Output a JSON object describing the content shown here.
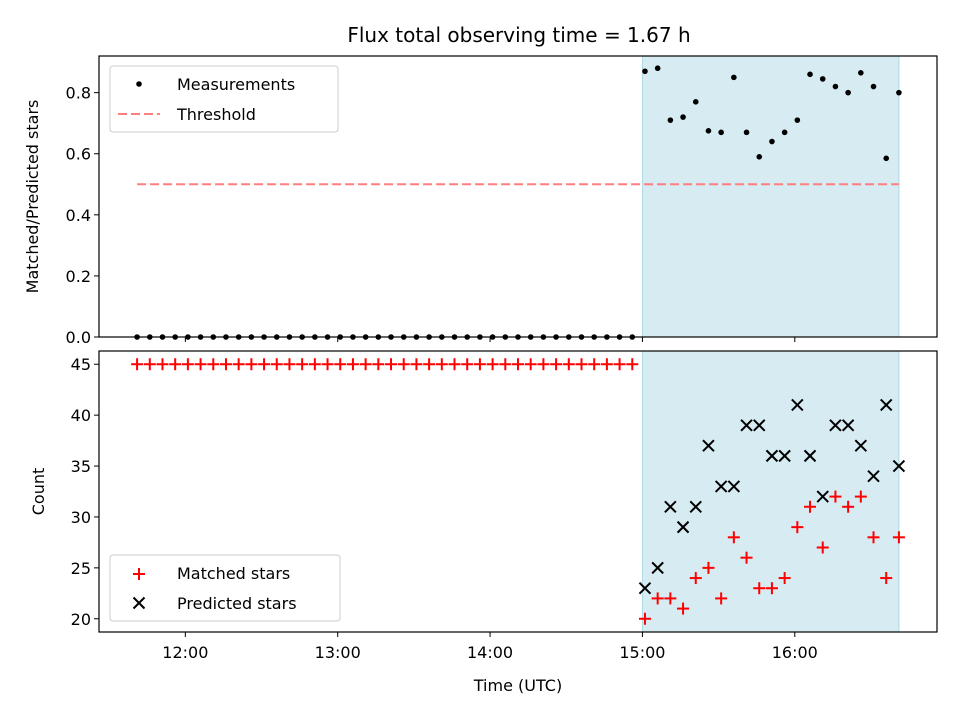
{
  "chart_data": [
    {
      "type": "scatter",
      "title": "Flux total observing time = 1.67 h",
      "xlabel": "",
      "ylabel": "Matched/Predicted stars",
      "xlim": [
        "11:26",
        "16:56"
      ],
      "ylim": [
        0,
        0.92
      ],
      "yticks": [
        0.0,
        0.2,
        0.4,
        0.6,
        0.8
      ],
      "yticklabels": [
        "0.0",
        "0.2",
        "0.4",
        "0.6",
        "0.8"
      ],
      "xticks": [
        "12:00",
        "13:00",
        "14:00",
        "15:00",
        "16:00"
      ],
      "xticklabels": [],
      "grid": false,
      "legend": "upper left",
      "shaded_span": {
        "from": "15:00",
        "to": "16:41",
        "color": "#add8e6"
      },
      "series": [
        {
          "name": "Measurements",
          "kind": "scatter",
          "color": "#000000",
          "x": [
            "11:41",
            "11:46",
            "11:51",
            "11:56",
            "12:01",
            "12:06",
            "12:11",
            "12:16",
            "12:21",
            "12:26",
            "12:31",
            "12:36",
            "12:41",
            "12:46",
            "12:51",
            "12:56",
            "13:01",
            "13:06",
            "13:11",
            "13:16",
            "13:21",
            "13:26",
            "13:31",
            "13:36",
            "13:41",
            "13:46",
            "13:51",
            "13:56",
            "14:01",
            "14:06",
            "14:11",
            "14:16",
            "14:21",
            "14:26",
            "14:31",
            "14:36",
            "14:41",
            "14:46",
            "14:51",
            "14:56",
            "15:01",
            "15:06",
            "15:11",
            "15:16",
            "15:21",
            "15:26",
            "15:31",
            "15:36",
            "15:41",
            "15:46",
            "15:51",
            "15:56",
            "16:01",
            "16:06",
            "16:11",
            "16:16",
            "16:21",
            "16:26",
            "16:31",
            "16:36",
            "16:41"
          ],
          "y": [
            0,
            0,
            0,
            0,
            0,
            0,
            0,
            0,
            0,
            0,
            0,
            0,
            0,
            0,
            0,
            0,
            0,
            0,
            0,
            0,
            0,
            0,
            0,
            0,
            0,
            0,
            0,
            0,
            0,
            0,
            0,
            0,
            0,
            0,
            0,
            0,
            0,
            0,
            0,
            0,
            0.87,
            0.88,
            0.71,
            0.72,
            0.77,
            0.675,
            0.67,
            0.85,
            0.67,
            0.59,
            0.64,
            0.67,
            0.71,
            0.86,
            0.845,
            0.82,
            0.8,
            0.865,
            0.82,
            0.585,
            0.8
          ]
        },
        {
          "name": "Threshold",
          "kind": "line",
          "style": "dashed",
          "color": "#ff7f7f",
          "x": [
            "11:41",
            "16:41"
          ],
          "y": [
            0.5,
            0.5
          ]
        }
      ]
    },
    {
      "type": "scatter",
      "title": "",
      "xlabel": "Time (UTC)",
      "ylabel": "Count",
      "xlim": [
        "11:26",
        "16:56"
      ],
      "ylim": [
        18.7,
        46.3
      ],
      "yticks": [
        20,
        25,
        30,
        35,
        40,
        45
      ],
      "yticklabels": [
        "20",
        "25",
        "30",
        "35",
        "40",
        "45"
      ],
      "xticks": [
        "12:00",
        "13:00",
        "14:00",
        "15:00",
        "16:00"
      ],
      "xticklabels": [
        "12:00",
        "13:00",
        "14:00",
        "15:00",
        "16:00"
      ],
      "grid": false,
      "legend": "lower left",
      "shaded_span": {
        "from": "15:00",
        "to": "16:41",
        "color": "#add8e6"
      },
      "series": [
        {
          "name": "Matched stars",
          "kind": "scatter",
          "marker": "+",
          "color": "#ff0000",
          "x": [
            "11:41",
            "11:46",
            "11:51",
            "11:56",
            "12:01",
            "12:06",
            "12:11",
            "12:16",
            "12:21",
            "12:26",
            "12:31",
            "12:36",
            "12:41",
            "12:46",
            "12:51",
            "12:56",
            "13:01",
            "13:06",
            "13:11",
            "13:16",
            "13:21",
            "13:26",
            "13:31",
            "13:36",
            "13:41",
            "13:46",
            "13:51",
            "13:56",
            "14:01",
            "14:06",
            "14:11",
            "14:16",
            "14:21",
            "14:26",
            "14:31",
            "14:36",
            "14:41",
            "14:46",
            "14:51",
            "14:56",
            "15:01",
            "15:06",
            "15:11",
            "15:16",
            "15:21",
            "15:26",
            "15:31",
            "15:36",
            "15:41",
            "15:46",
            "15:51",
            "15:56",
            "16:01",
            "16:06",
            "16:11",
            "16:16",
            "16:21",
            "16:26",
            "16:31",
            "16:36",
            "16:41"
          ],
          "y": [
            45,
            45,
            45,
            45,
            45,
            45,
            45,
            45,
            45,
            45,
            45,
            45,
            45,
            45,
            45,
            45,
            45,
            45,
            45,
            45,
            45,
            45,
            45,
            45,
            45,
            45,
            45,
            45,
            45,
            45,
            45,
            45,
            45,
            45,
            45,
            45,
            45,
            45,
            45,
            45,
            20,
            22,
            22,
            21,
            24,
            25,
            22,
            28,
            26,
            23,
            23,
            24,
            29,
            31,
            27,
            32,
            31,
            32,
            28,
            24,
            28
          ]
        },
        {
          "name": "Predicted stars",
          "kind": "scatter",
          "marker": "x",
          "color": "#000000",
          "x": [
            "15:01",
            "15:06",
            "15:11",
            "15:16",
            "15:21",
            "15:26",
            "15:31",
            "15:36",
            "15:41",
            "15:46",
            "15:51",
            "15:56",
            "16:01",
            "16:06",
            "16:11",
            "16:16",
            "16:21",
            "16:26",
            "16:31",
            "16:36",
            "16:41"
          ],
          "y": [
            23,
            25,
            31,
            29,
            31,
            37,
            33,
            33,
            39,
            39,
            36,
            36,
            41,
            36,
            32,
            39,
            39,
            37,
            34,
            41,
            35
          ]
        }
      ]
    }
  ]
}
